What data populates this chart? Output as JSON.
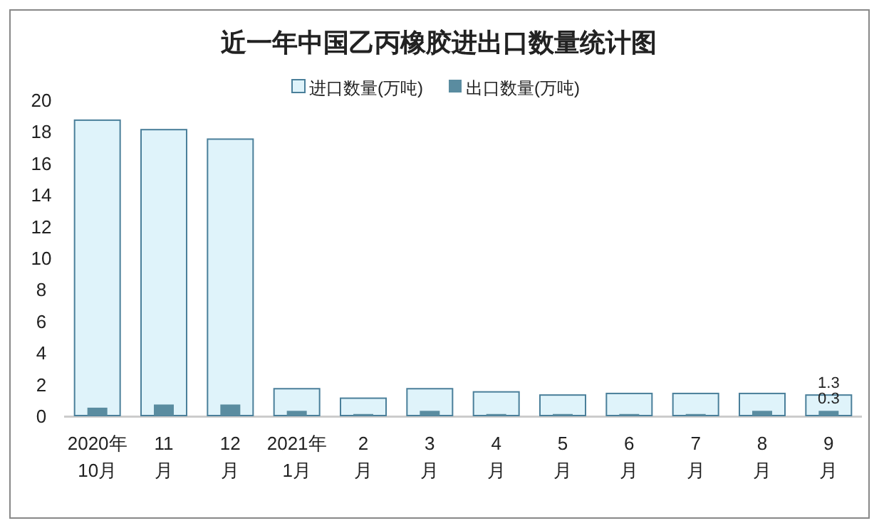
{
  "chart_data": {
    "type": "bar",
    "title": "近一年中国乙丙橡胶进出口数量统计图",
    "categories": [
      "2020年\n10月",
      "11\n月",
      "12\n月",
      "2021年\n1月",
      "2\n月",
      "3\n月",
      "4\n月",
      "5\n月",
      "6\n月",
      "7\n月",
      "8\n月",
      "9\n月"
    ],
    "series": [
      {
        "name": "进口数量(万吨)",
        "color": "#dff3fa",
        "values": [
          18.7,
          18.1,
          17.5,
          1.7,
          1.1,
          1.7,
          1.5,
          1.3,
          1.4,
          1.4,
          1.4,
          1.3
        ],
        "value_labels": [
          null,
          null,
          null,
          null,
          null,
          null,
          null,
          null,
          null,
          null,
          null,
          "1.3"
        ]
      },
      {
        "name": "出口数量(万吨)",
        "color": "#5a8ca0",
        "values": [
          0.5,
          0.7,
          0.7,
          0.3,
          0.1,
          0.3,
          0.1,
          0.1,
          0.1,
          0.1,
          0.3,
          0.3
        ],
        "value_labels": [
          null,
          null,
          null,
          null,
          null,
          null,
          null,
          null,
          null,
          null,
          null,
          "0.3"
        ]
      }
    ],
    "ylim": [
      0,
      20
    ],
    "yticks": [
      0,
      2,
      4,
      6,
      8,
      10,
      12,
      14,
      16,
      18,
      20
    ],
    "grid": false,
    "legend": "top"
  }
}
